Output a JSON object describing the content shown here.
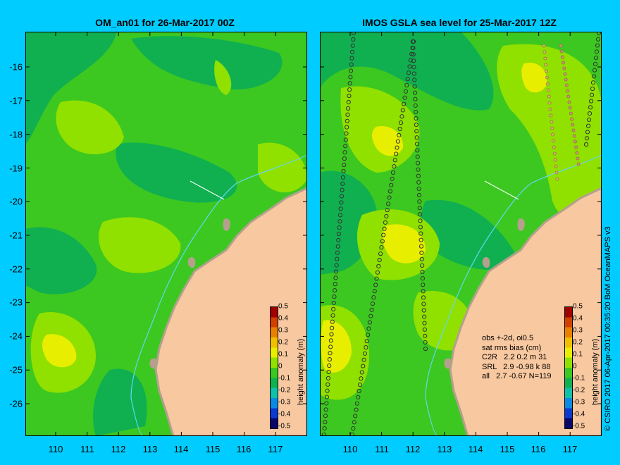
{
  "left_panel": {
    "title": "OM_an01 for 26-Mar-2017 00Z"
  },
  "right_panel": {
    "title": "IMOS GSLA sea level  for 25-Mar-2017 12Z"
  },
  "y_axis_labels": [
    "-16",
    "-17",
    "-18",
    "-19",
    "-20",
    "-21",
    "-22",
    "-23",
    "-24",
    "-25",
    "-26"
  ],
  "x_axis_labels": [
    "110",
    "111",
    "112",
    "113",
    "114",
    "115",
    "116",
    "117"
  ],
  "colorbar": {
    "title": "height anomaly (m)",
    "ticks": [
      "0.5",
      "0.4",
      "0.3",
      "0.2",
      "0.1",
      "0",
      "-0.1",
      "-0.2",
      "-0.3",
      "-0.4",
      "-0.5"
    ],
    "colors": [
      "#08086b",
      "#0a3ad0",
      "#0a8ae0",
      "#10c0a8",
      "#10b050",
      "#3cc820",
      "#90e000",
      "#e8ee00",
      "#f0c000",
      "#e88000",
      "#d04000",
      "#a00000"
    ]
  },
  "stats": {
    "line1": "obs +-2d, oi0.5",
    "line2": "sat rms bias (cm)",
    "line3": "C2R   2.2 0.2 m 31",
    "line4": "SRL   2.9 -0.98 k 88",
    "line5": "all   2.7 -0.67 N=119"
  },
  "credit": "© CSIRO 2017  06-Apr-2017 00:35:20 BoM OceanMAPS v3",
  "colors": {
    "background": "#00ccff",
    "land": "#f8c8a0",
    "island": "#b4a08c",
    "ocean_base": "#3cc820",
    "anomaly_low": "#10b050",
    "anomaly_high": "#90e000",
    "anomaly_peak": "#e8ee00",
    "isobath": "#60d8f0"
  }
}
